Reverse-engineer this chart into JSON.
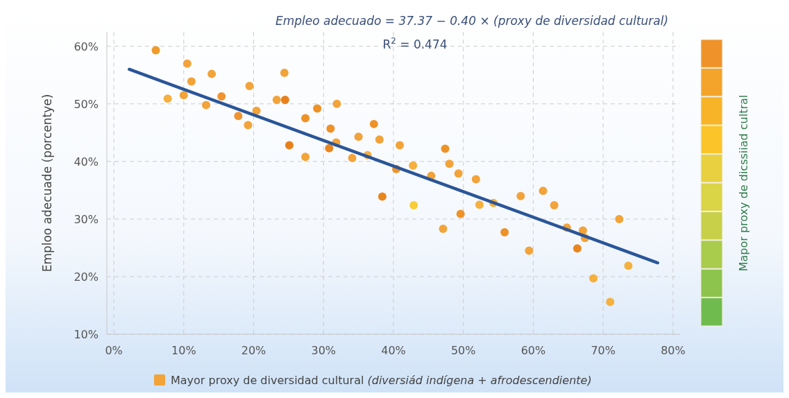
{
  "chart_data": {
    "type": "scatter",
    "ylabel": "Emploo adecuade (porcentye)",
    "xlim": [
      -1,
      81
    ],
    "ylim": [
      10,
      62.5
    ],
    "xticks": [
      {
        "value": 0,
        "label": "0%"
      },
      {
        "value": 10,
        "label": "10%"
      },
      {
        "value": 20,
        "label": "20%"
      },
      {
        "value": 30,
        "label": "30%"
      },
      {
        "value": 40,
        "label": "40%"
      },
      {
        "value": 50,
        "label": "50%"
      },
      {
        "value": 60,
        "label": "60%"
      },
      {
        "value": 70,
        "label": "70%"
      },
      {
        "value": 80,
        "label": "80%"
      }
    ],
    "yticks": [
      {
        "value": 10,
        "label": "10%"
      },
      {
        "value": 20,
        "label": "20%"
      },
      {
        "value": 30,
        "label": "30%"
      },
      {
        "value": 40,
        "label": "40%"
      },
      {
        "value": 50,
        "label": "50%"
      },
      {
        "value": 60,
        "label": "60%"
      }
    ],
    "grid": true,
    "legend": "bottom",
    "annotations": [
      "Empleo adecuado = 37.37 − 0.40 × (proxy de diversidad cultural)",
      "R$^{2}$ = 0.474",
      "Mapor proxy de dicssiiad cultral"
    ],
    "series": [
      {
        "name": "Mayor proxy de diversidad cultural (diversiád indígena + afrodescendiente)",
        "marker": "circle",
        "color": "#f2a33a",
        "x": [
          6.0,
          7.7,
          10.0,
          10.5,
          11.1,
          13.2,
          14.0,
          15.4,
          17.8,
          19.2,
          19.4,
          20.4,
          23.3,
          24.4,
          24.5,
          25.1,
          27.4,
          27.4,
          29.1,
          31.0,
          31.8,
          30.8,
          31.9,
          35.0,
          37.2,
          38.0,
          40.9,
          34.1,
          36.3,
          40.4,
          42.8,
          45.4,
          47.4,
          48.0,
          49.3,
          51.8,
          38.4,
          42.9,
          47.1,
          49.6,
          52.3,
          54.3,
          55.9,
          58.2,
          61.4,
          59.4,
          63.0,
          64.8,
          67.1,
          67.4,
          66.3,
          72.3,
          73.6,
          68.6,
          71.0
        ],
        "values": [
          59.3,
          50.9,
          51.5,
          57.0,
          53.9,
          49.8,
          55.2,
          51.3,
          47.9,
          46.3,
          53.1,
          48.8,
          50.7,
          55.4,
          50.7,
          42.8,
          40.8,
          47.5,
          49.2,
          45.7,
          43.3,
          42.3,
          50.0,
          44.3,
          46.5,
          43.8,
          42.8,
          40.6,
          41.1,
          38.7,
          39.3,
          37.5,
          42.2,
          39.6,
          37.9,
          36.9,
          33.9,
          32.4,
          28.3,
          30.9,
          32.5,
          32.8,
          27.7,
          34.0,
          34.9,
          24.5,
          32.4,
          28.5,
          28.0,
          26.7,
          24.9,
          30.0,
          21.9,
          19.7,
          15.6
        ],
        "colors": [
          "#f09a2c",
          "#f5b040",
          "#f2a33a",
          "#f2a33a",
          "#f2a33a",
          "#f2a33a",
          "#f2a33a",
          "#ef9430",
          "#ef9430",
          "#f2a33a",
          "#f2a33a",
          "#f2a33a",
          "#f2a33a",
          "#f2a33a",
          "#e8801c",
          "#e8801c",
          "#f2a33a",
          "#ee9228",
          "#ee9228",
          "#ee9228",
          "#f2a33a",
          "#e8861e",
          "#f2a33a",
          "#f2a33a",
          "#ee9228",
          "#f2a33a",
          "#f2a33a",
          "#f2a33a",
          "#f5b040",
          "#ee9228",
          "#f5b040",
          "#f2a33a",
          "#ee9228",
          "#f2a33a",
          "#f2a33a",
          "#f2a33a",
          "#e8861e",
          "#f7cd38",
          "#f2a33a",
          "#ee9228",
          "#f5b040",
          "#f5b040",
          "#ee9228",
          "#f2a33a",
          "#f2a33a",
          "#f2a33a",
          "#f2a33a",
          "#f2a33a",
          "#f2a33a",
          "#f2a33a",
          "#e8861e",
          "#f2a33a",
          "#f5b040",
          "#f5b040",
          "#f5b040"
        ]
      },
      {
        "type": "line",
        "color": "#2a5599",
        "x": [
          2.2,
          77.8
        ],
        "values": [
          56.0,
          22.4
        ]
      }
    ]
  }
}
